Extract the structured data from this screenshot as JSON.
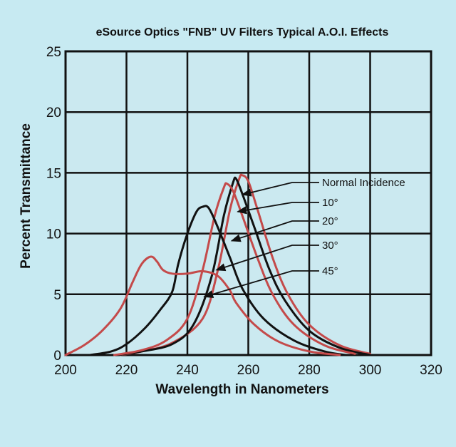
{
  "chart_data": {
    "type": "line",
    "title": "eSource Optics \"FNB\" UV Filters Typical A.O.I. Effects",
    "xlabel": "Wavelength in Nanometers",
    "ylabel": "Percent Transmittance",
    "xlim": [
      200,
      320
    ],
    "ylim": [
      0,
      25
    ],
    "xticks": [
      200,
      220,
      240,
      260,
      280,
      300,
      320
    ],
    "yticks": [
      0,
      5,
      10,
      15,
      20,
      25
    ],
    "grid": true,
    "legend_position": "right",
    "colors": {
      "red": "#c44a4a",
      "black": "#111111",
      "grid": "#111111",
      "plot_bg": "#cbe9f0"
    },
    "series": [
      {
        "name": "Normal Incidence",
        "color": "#c44a4a",
        "points": [
          [
            218,
            0
          ],
          [
            225,
            0.3
          ],
          [
            235,
            1
          ],
          [
            245,
            3
          ],
          [
            250,
            7
          ],
          [
            254,
            12
          ],
          [
            257,
            14.5
          ],
          [
            258,
            14.8
          ],
          [
            260,
            14.3
          ],
          [
            263,
            12
          ],
          [
            268,
            8
          ],
          [
            273,
            5
          ],
          [
            280,
            2.5
          ],
          [
            290,
            0.8
          ],
          [
            300,
            0.1
          ]
        ]
      },
      {
        "name": "10°",
        "color": "#111111",
        "points": [
          [
            217,
            0
          ],
          [
            225,
            0.3
          ],
          [
            235,
            0.9
          ],
          [
            242,
            2.5
          ],
          [
            248,
            6.5
          ],
          [
            252,
            11.5
          ],
          [
            255,
            14.2
          ],
          [
            256,
            14.5
          ],
          [
            258,
            13.3
          ],
          [
            262,
            10.5
          ],
          [
            267,
            7
          ],
          [
            272,
            4.5
          ],
          [
            280,
            2
          ],
          [
            290,
            0.6
          ],
          [
            300,
            0
          ]
        ]
      },
      {
        "name": "20°",
        "color": "#c44a4a",
        "points": [
          [
            216,
            0
          ],
          [
            225,
            0.4
          ],
          [
            233,
            1.2
          ],
          [
            240,
            3
          ],
          [
            245,
            7
          ],
          [
            249,
            11.5
          ],
          [
            252,
            13.8
          ],
          [
            253,
            14.1
          ],
          [
            255,
            13.5
          ],
          [
            258,
            11.5
          ],
          [
            263,
            8
          ],
          [
            268,
            5
          ],
          [
            275,
            2.5
          ],
          [
            285,
            0.8
          ],
          [
            295,
            0.1
          ]
        ]
      },
      {
        "name": "30°",
        "color": "#111111",
        "points": [
          [
            208,
            0
          ],
          [
            215,
            0.3
          ],
          [
            220,
            0.9
          ],
          [
            226,
            2.2
          ],
          [
            231,
            3.7
          ],
          [
            235,
            5.2
          ],
          [
            237,
            7.5
          ],
          [
            240,
            10
          ],
          [
            243,
            11.8
          ],
          [
            245,
            12.2
          ],
          [
            247,
            12.1
          ],
          [
            250,
            10.5
          ],
          [
            254,
            8
          ],
          [
            258,
            5.5
          ],
          [
            265,
            3
          ],
          [
            275,
            1.2
          ],
          [
            285,
            0.3
          ],
          [
            292,
            0
          ]
        ]
      },
      {
        "name": "45°",
        "color": "#c44a4a",
        "points": [
          [
            200,
            0
          ],
          [
            206,
            0.8
          ],
          [
            212,
            2
          ],
          [
            218,
            3.8
          ],
          [
            222,
            6
          ],
          [
            225,
            7.5
          ],
          [
            228,
            8.1
          ],
          [
            230,
            7.7
          ],
          [
            232,
            7
          ],
          [
            235,
            6.7
          ],
          [
            240,
            6.7
          ],
          [
            245,
            6.9
          ],
          [
            250,
            6.5
          ],
          [
            254,
            5.3
          ],
          [
            256,
            4.3
          ],
          [
            262,
            2.5
          ],
          [
            270,
            1.1
          ],
          [
            280,
            0.3
          ],
          [
            290,
            0
          ]
        ]
      }
    ],
    "legend": [
      {
        "label": "Normal Incidence",
        "target_series": 0,
        "arrow_to": [
          258,
          13.2
        ]
      },
      {
        "label": "10°",
        "target_series": 1,
        "arrow_to": [
          256.5,
          11.8
        ]
      },
      {
        "label": "20°",
        "target_series": 2,
        "arrow_to": [
          254.5,
          9.4
        ]
      },
      {
        "label": "30°",
        "target_series": 3,
        "arrow_to": [
          249.5,
          7
        ]
      },
      {
        "label": "45°",
        "target_series": 4,
        "arrow_to": [
          245.5,
          4.8
        ]
      }
    ]
  }
}
